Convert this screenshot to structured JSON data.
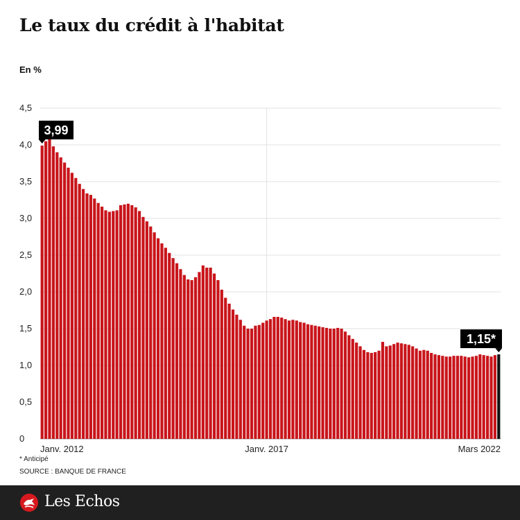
{
  "title": "Le taux du crédit à l'habitat",
  "unit_label": "En %",
  "footnote": "* Anticipé",
  "source": "SOURCE : BANQUE DE FRANCE",
  "brand": "Les Echos",
  "colors": {
    "bar": "#c8151b",
    "bar_highlight": "#111111",
    "footer": "#202020",
    "callout": "#000000"
  },
  "chart_data": {
    "type": "bar",
    "title": "Le taux du crédit à l'habitat",
    "ylabel": "En %",
    "ylim": [
      0,
      4.5
    ],
    "yticks": [
      0,
      0.5,
      1.0,
      1.5,
      2.0,
      2.5,
      3.0,
      3.5,
      4.0,
      4.5
    ],
    "ytick_labels": [
      "0",
      "0,5",
      "1,0",
      "1,5",
      "2,0",
      "2,5",
      "3,0",
      "3,5",
      "4,0",
      "4,5"
    ],
    "x_tick_labels": [
      {
        "label": "Janv. 2012",
        "index": 0
      },
      {
        "label": "Janv. 2017",
        "index": 60
      },
      {
        "label": "Mars 2022",
        "index": 122
      }
    ],
    "start": "2011-12",
    "end": "2022-03",
    "grid": true,
    "values": [
      3.99,
      4.05,
      4.08,
      3.98,
      3.9,
      3.83,
      3.76,
      3.69,
      3.62,
      3.55,
      3.47,
      3.4,
      3.34,
      3.32,
      3.27,
      3.21,
      3.16,
      3.11,
      3.09,
      3.1,
      3.11,
      3.18,
      3.19,
      3.2,
      3.18,
      3.15,
      3.1,
      3.02,
      2.96,
      2.89,
      2.81,
      2.73,
      2.66,
      2.6,
      2.53,
      2.46,
      2.39,
      2.31,
      2.23,
      2.17,
      2.16,
      2.2,
      2.27,
      2.36,
      2.33,
      2.33,
      2.25,
      2.16,
      2.03,
      1.92,
      1.84,
      1.76,
      1.69,
      1.62,
      1.54,
      1.5,
      1.5,
      1.54,
      1.55,
      1.58,
      1.61,
      1.63,
      1.66,
      1.66,
      1.65,
      1.63,
      1.61,
      1.62,
      1.61,
      1.59,
      1.58,
      1.56,
      1.55,
      1.54,
      1.53,
      1.52,
      1.51,
      1.5,
      1.5,
      1.51,
      1.5,
      1.46,
      1.41,
      1.36,
      1.31,
      1.26,
      1.21,
      1.18,
      1.17,
      1.18,
      1.2,
      1.32,
      1.26,
      1.27,
      1.29,
      1.31,
      1.3,
      1.29,
      1.28,
      1.26,
      1.23,
      1.2,
      1.21,
      1.2,
      1.17,
      1.15,
      1.14,
      1.13,
      1.12,
      1.12,
      1.13,
      1.13,
      1.13,
      1.12,
      1.11,
      1.12,
      1.13,
      1.15,
      1.14,
      1.13,
      1.12,
      1.14,
      1.15
    ],
    "callouts": [
      {
        "label": "3,99",
        "index": 0
      },
      {
        "label": "1,15*",
        "index": 122
      }
    ],
    "highlight_index": 122
  }
}
